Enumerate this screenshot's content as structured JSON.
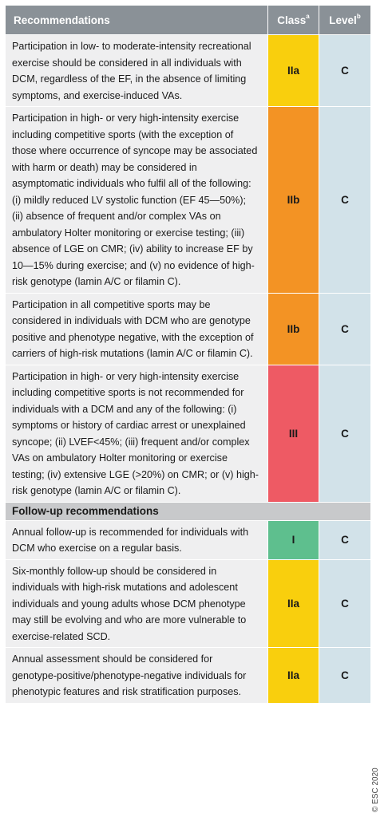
{
  "header": {
    "recommendations": "Recommendations",
    "class": "Class",
    "class_sup": "a",
    "level": "Level",
    "level_sup": "b"
  },
  "rows": [
    {
      "text": "Participation in low- to moderate-intensity recreational exercise should be considered in all individuals with DCM, regardless of the EF, in the absence of limiting symptoms, and exercise-induced VAs.",
      "class": "IIa",
      "level": "C"
    },
    {
      "text": "Participation in high- or very high-intensity exercise including competitive sports (with the exception of those where occurrence of syncope may be associated with harm or death) may be considered in asymptomatic individuals who fulfil all of the following: (i) mildly reduced LV systolic function (EF 45—50%); (ii) absence of frequent and/or complex VAs on ambulatory Holter monitoring or exercise testing; (iii) absence of LGE on CMR; (iv) ability to increase EF by 10—15% during exercise; and (v) no evidence of high-risk genotype (lamin A/C or filamin C).",
      "class": "IIb",
      "level": "C"
    },
    {
      "text": "Participation in all competitive sports may be considered in individuals with DCM who are genotype positive and phenotype negative, with the exception of carriers of high-risk mutations (lamin A/C or filamin C).",
      "class": "IIb",
      "level": "C"
    },
    {
      "text": "Participation in high- or very high-intensity exercise including competitive sports is not recommended for individuals with a DCM and any of the following: (i) symptoms or history of cardiac arrest or unexplained syncope; (ii) LVEF<45%; (iii) frequent and/or complex VAs on ambulatory Holter monitoring or exercise testing; (iv) extensive LGE (>20%) on CMR; or (v) high-risk genotype (lamin A/C or filamin C).",
      "class": "III",
      "level": "C"
    }
  ],
  "section": "Follow-up recommendations",
  "followup_rows": [
    {
      "text": "Annual follow-up is recommended for individuals with DCM who exercise on a regular basis.",
      "class": "I",
      "level": "C"
    },
    {
      "text": "Six-monthly follow-up should be considered in individuals with high-risk mutations and adolescent individuals and young adults whose DCM phenotype may still be evolving and who are more vulnerable to exercise-related SCD.",
      "class": "IIa",
      "level": "C"
    },
    {
      "text": "Annual assessment should be considered for genotype-positive/phenotype-negative individuals for phenotypic features and risk stratification purposes.",
      "class": "IIa",
      "level": "C"
    }
  ],
  "class_colors": {
    "I": "#5ebf8e",
    "IIa": "#f9cf0d",
    "IIb": "#f39324",
    "III": "#ee5a64"
  },
  "copyright": "© ESC 2020"
}
